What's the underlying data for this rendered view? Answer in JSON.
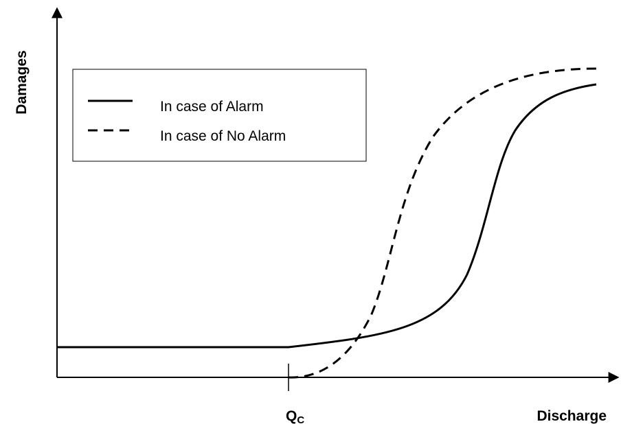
{
  "diagram": {
    "y_axis_label": "Damages",
    "x_axis_label": "Discharge",
    "threshold_label": {
      "main": "Q",
      "subscript": "C"
    },
    "legend": [
      "In case of Alarm",
      "In case of No Alarm"
    ]
  }
}
